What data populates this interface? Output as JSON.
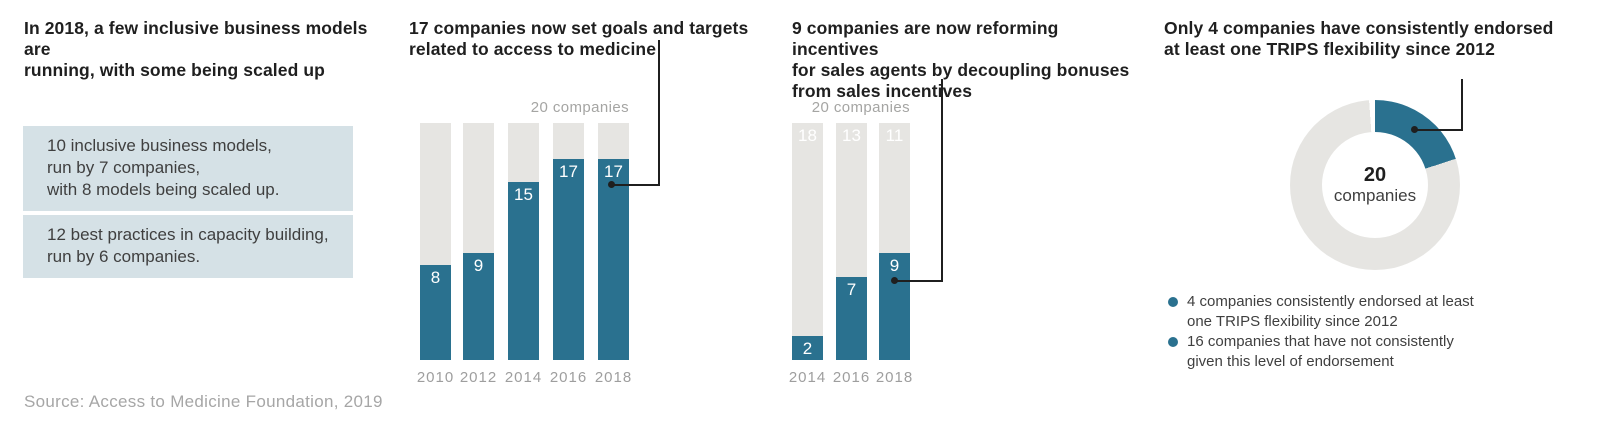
{
  "source": "Source: Access to Medicine Foundation, 2019",
  "colors": {
    "teal": "#2a718f",
    "track_gray": "#e6e5e2",
    "box_blue": "#d5e1e6",
    "title_text": "#1f1f1f",
    "body_text": "#3f3f3f",
    "muted_text": "#9e9e9e",
    "callout_line": "#1f1f1f"
  },
  "panel1": {
    "title": "In 2018, a few inclusive business models are\nrunning, with some being scaled up",
    "box1": "10 inclusive business models,\nrun by 7 companies,\nwith 8 models being scaled up.",
    "box2": "12 best practices in capacity building,\nrun by 6 companies."
  },
  "chart_data": [
    {
      "type": "bar",
      "title": "17 companies now set goals and targets\nrelated to access to medicine",
      "categories": [
        "2010",
        "2012",
        "2014",
        "2016",
        "2018"
      ],
      "values": [
        8,
        9,
        15,
        17,
        17
      ],
      "total": 20,
      "total_label": "20 companies",
      "ylim": [
        0,
        20
      ],
      "bar_color": "#2a718f",
      "track_color": "#e6e5e2",
      "callout_target": "2018"
    },
    {
      "type": "bar",
      "title": "9 companies are now reforming incentives\nfor sales agents by decoupling bonuses\nfrom sales incentives",
      "categories": [
        "2014",
        "2016",
        "2018"
      ],
      "values": [
        2,
        7,
        9
      ],
      "remainder_labels": [
        18,
        13,
        11
      ],
      "total": 20,
      "total_label": "20 companies",
      "ylim": [
        0,
        20
      ],
      "bar_color": "#2a718f",
      "track_color": "#e6e5e2",
      "callout_target": "2018"
    },
    {
      "type": "donut",
      "title": "Only 4 companies have consistently endorsed\nat least one TRIPS flexibility since 2012",
      "center_value": "20",
      "center_label": "companies",
      "total": 20,
      "slices": [
        {
          "value": 4,
          "color": "#2a718f",
          "label": "4 companies consistently endorsed at least\none TRIPS flexibility since 2012"
        },
        {
          "value": 16,
          "color": "#e6e5e2",
          "label": "16 companies that have not consistently\ngiven this level of endorsement"
        }
      ],
      "legend_bullet_color": "#2a718f",
      "callout_target": "4 companies slice"
    }
  ]
}
